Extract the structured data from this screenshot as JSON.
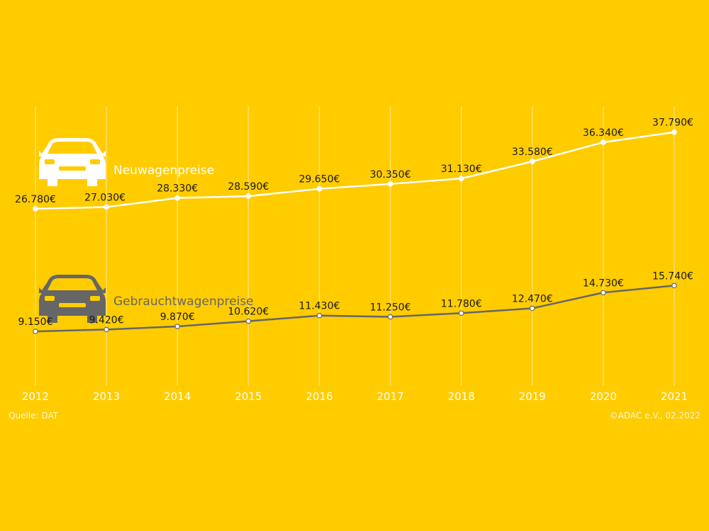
{
  "colors": {
    "background": "#FFCC00",
    "series_new": "#FFFFFF",
    "series_used": "#666666",
    "grid": "#FFE066"
  },
  "footer": {
    "source": "Quelle: DAT",
    "credit": "©ADAC e.V., 02.2022"
  },
  "chart_data": {
    "type": "line",
    "x": [
      "2012",
      "2013",
      "2014",
      "2015",
      "2016",
      "2017",
      "2018",
      "2019",
      "2020",
      "2021"
    ],
    "ylim": [
      0,
      40000
    ],
    "grid": "vertical",
    "legend": "left, with car icons",
    "series": [
      {
        "name": "Neuwagenpreise",
        "icon": "car-icon",
        "values": [
          26780,
          27030,
          28330,
          28590,
          29650,
          30350,
          31130,
          33580,
          36340,
          37790
        ],
        "labels": [
          "26.780€",
          "27.030€",
          "28.330€",
          "28.590€",
          "29.650€",
          "30.350€",
          "31.130€",
          "33.580€",
          "36.340€",
          "37.790€"
        ]
      },
      {
        "name": "Gebrauchtwagenpreise",
        "icon": "car-icon",
        "values": [
          9150,
          9420,
          9870,
          10620,
          11430,
          11250,
          11780,
          12470,
          14730,
          15740
        ],
        "labels": [
          "9.150€",
          "9.420€",
          "9.870€",
          "10.620€",
          "11.430€",
          "11.250€",
          "11.780€",
          "12.470€",
          "14.730€",
          "15.740€"
        ]
      }
    ]
  }
}
